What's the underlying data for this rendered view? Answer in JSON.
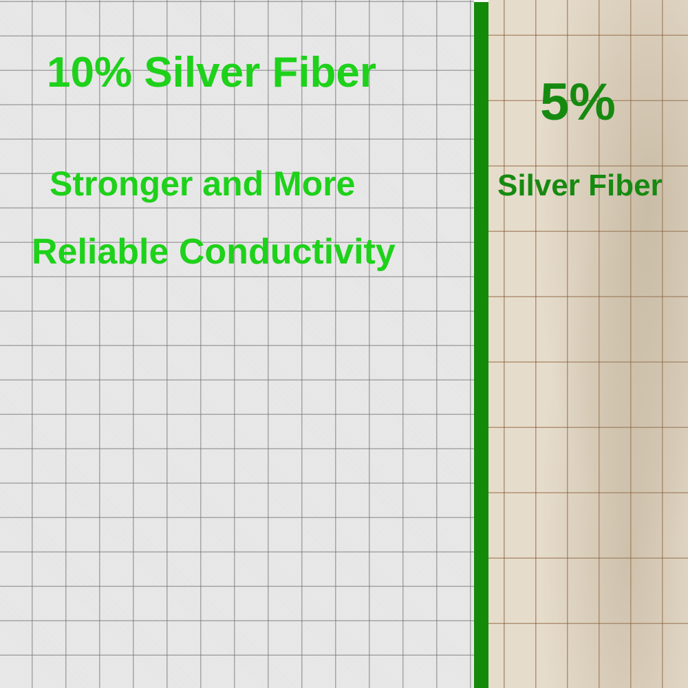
{
  "left_panel": {
    "title": "10% Silver Fiber",
    "line1": "Stronger and More",
    "line2": "Reliable Conductivity"
  },
  "right_panel": {
    "percent": "5%",
    "label": "Silver Fiber"
  },
  "colors": {
    "bright_green": "#1ed11a",
    "dark_green": "#168a10",
    "divider": "#148a0a"
  }
}
